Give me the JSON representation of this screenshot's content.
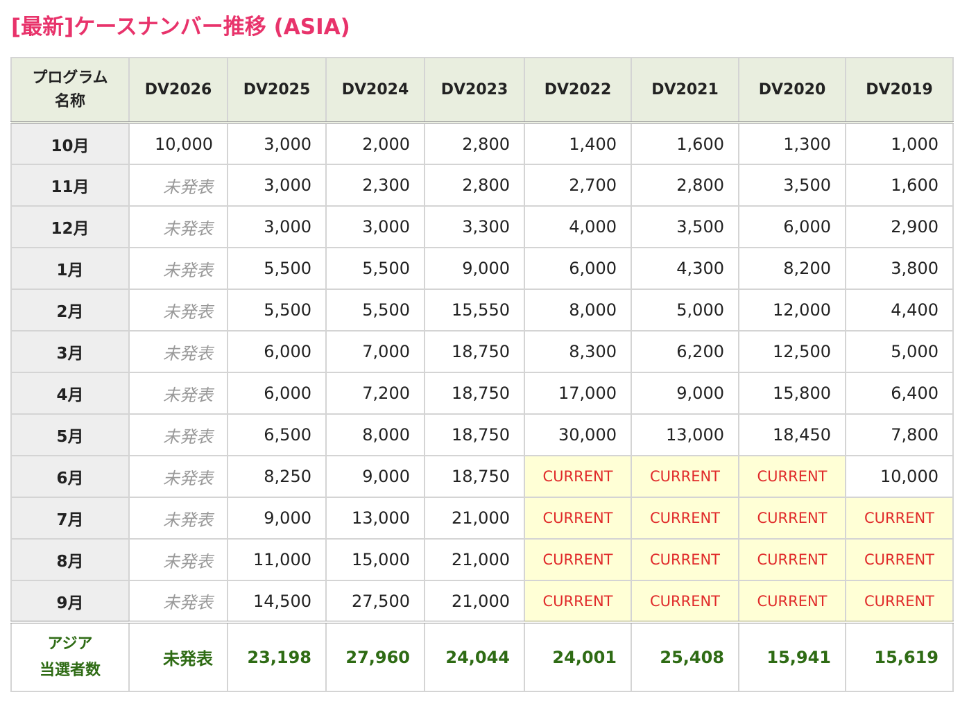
{
  "title": "[最新]ケースナンバー推移 (ASIA)",
  "table": {
    "corner_line1": "プログラム",
    "corner_line2": "名称",
    "columns": [
      "DV2026",
      "DV2025",
      "DV2024",
      "DV2023",
      "DV2022",
      "DV2021",
      "DV2020",
      "DV2019"
    ],
    "rows": [
      {
        "month": "10月",
        "cells": [
          "10,000",
          "3,000",
          "2,000",
          "2,800",
          "1,400",
          "1,600",
          "1,300",
          "1,000"
        ]
      },
      {
        "month": "11月",
        "cells": [
          "未発表",
          "3,000",
          "2,300",
          "2,800",
          "2,700",
          "2,800",
          "3,500",
          "1,600"
        ]
      },
      {
        "month": "12月",
        "cells": [
          "未発表",
          "3,000",
          "3,000",
          "3,300",
          "4,000",
          "3,500",
          "6,000",
          "2,900"
        ]
      },
      {
        "month": "1月",
        "cells": [
          "未発表",
          "5,500",
          "5,500",
          "9,000",
          "6,000",
          "4,300",
          "8,200",
          "3,800"
        ]
      },
      {
        "month": "2月",
        "cells": [
          "未発表",
          "5,500",
          "5,500",
          "15,550",
          "8,000",
          "5,000",
          "12,000",
          "4,400"
        ]
      },
      {
        "month": "3月",
        "cells": [
          "未発表",
          "6,000",
          "7,000",
          "18,750",
          "8,300",
          "6,200",
          "12,500",
          "5,000"
        ]
      },
      {
        "month": "4月",
        "cells": [
          "未発表",
          "6,000",
          "7,200",
          "18,750",
          "17,000",
          "9,000",
          "15,800",
          "6,400"
        ]
      },
      {
        "month": "5月",
        "cells": [
          "未発表",
          "6,500",
          "8,000",
          "18,750",
          "30,000",
          "13,000",
          "18,450",
          "7,800"
        ]
      },
      {
        "month": "6月",
        "cells": [
          "未発表",
          "8,250",
          "9,000",
          "18,750",
          "CURRENT",
          "CURRENT",
          "CURRENT",
          "10,000"
        ]
      },
      {
        "month": "7月",
        "cells": [
          "未発表",
          "9,000",
          "13,000",
          "21,000",
          "CURRENT",
          "CURRENT",
          "CURRENT",
          "CURRENT"
        ]
      },
      {
        "month": "8月",
        "cells": [
          "未発表",
          "11,000",
          "15,000",
          "21,000",
          "CURRENT",
          "CURRENT",
          "CURRENT",
          "CURRENT"
        ]
      },
      {
        "month": "9月",
        "cells": [
          "未発表",
          "14,500",
          "27,500",
          "21,000",
          "CURRENT",
          "CURRENT",
          "CURRENT",
          "CURRENT"
        ]
      }
    ],
    "footer_line1": "アジア",
    "footer_line2": "当選者数",
    "footer_cells": [
      "未発表",
      "23,198",
      "27,960",
      "24,044",
      "24,001",
      "25,408",
      "15,941",
      "15,619"
    ]
  },
  "colors": {
    "title": "#e8336b",
    "header_bg": "#e9eedf",
    "month_bg": "#eeeeee",
    "current_bg": "#ffffd6",
    "current_text": "#e02a2a",
    "footer_text": "#2e6b14",
    "not_announced_text": "#999999"
  }
}
